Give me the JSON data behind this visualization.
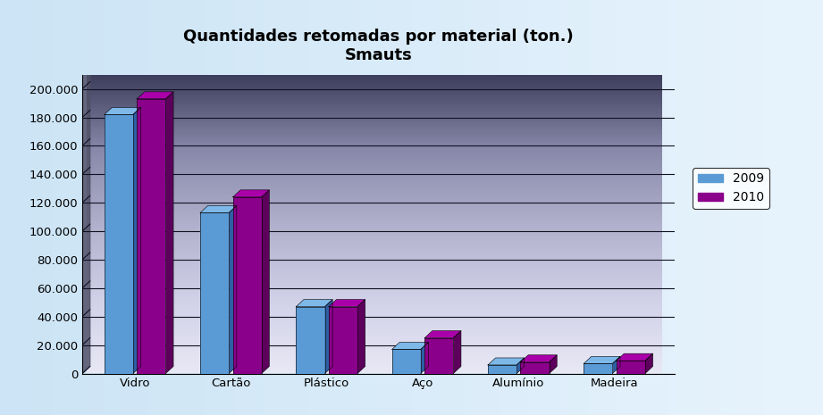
{
  "title": "Quantidades retomadas por material (ton.)\nSmauts",
  "categories": [
    "Vidro",
    "Cartão",
    "Plástico",
    "Aço",
    "Alumínio",
    "Madeira"
  ],
  "values_2009": [
    182000,
    113000,
    47000,
    17000,
    6000,
    7000
  ],
  "values_2010": [
    193000,
    124000,
    47000,
    25000,
    8000,
    9000
  ],
  "color_2009_face": "#5B9BD5",
  "color_2009_side": "#2E5FA3",
  "color_2009_top": "#7DB8E8",
  "color_2010_face": "#8B008B",
  "color_2010_side": "#5C005C",
  "color_2010_top": "#AA00AA",
  "ylim": [
    0,
    210000
  ],
  "yticks": [
    0,
    20000,
    40000,
    60000,
    80000,
    100000,
    120000,
    140000,
    160000,
    180000,
    200000
  ],
  "legend_labels": [
    "2009",
    "2010"
  ],
  "title_fontsize": 13,
  "tick_fontsize": 9.5
}
